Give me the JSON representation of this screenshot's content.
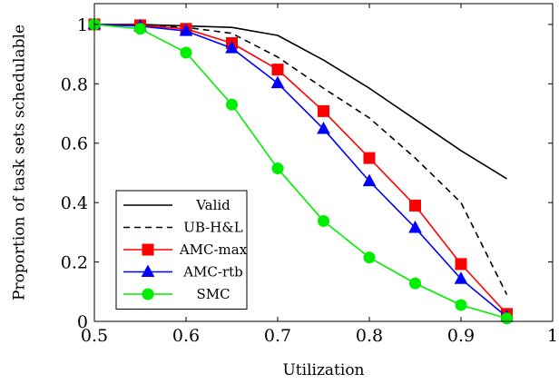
{
  "chart_data": {
    "type": "line",
    "title": "",
    "xlabel": "Utilization",
    "ylabel": "Proportion of task sets schedulable",
    "xlim": [
      0.5,
      1.0
    ],
    "ylim": [
      0,
      1.07
    ],
    "xticks": [
      0.5,
      0.6,
      0.7,
      0.8,
      0.9,
      1.0
    ],
    "xtick_labels": [
      "0.5",
      "0.6",
      "0.7",
      "0.8",
      "0.9",
      "1"
    ],
    "yticks": [
      0,
      0.2,
      0.4,
      0.6,
      0.8,
      1.0
    ],
    "ytick_labels": [
      "0",
      "0.2",
      "0.4",
      "0.6",
      "0.8",
      "1"
    ],
    "grid": false,
    "legend_position": "bottom-left",
    "x": [
      0.5,
      0.55,
      0.6,
      0.65,
      0.7,
      0.75,
      0.8,
      0.85,
      0.9,
      0.95
    ],
    "series": [
      {
        "name": "Valid",
        "color": "#000000",
        "style": "solid",
        "marker": "none",
        "values": [
          1.0,
          1.0,
          0.995,
          0.99,
          0.963,
          0.88,
          0.785,
          0.68,
          0.575,
          0.48
        ]
      },
      {
        "name": "UB-H&L",
        "color": "#000000",
        "style": "dashed",
        "marker": "none",
        "values": [
          1.0,
          0.998,
          0.99,
          0.97,
          0.89,
          0.785,
          0.685,
          0.55,
          0.4,
          0.09
        ]
      },
      {
        "name": "AMC-max",
        "color": "#ff0000",
        "style": "solid",
        "marker": "square",
        "values": [
          1.0,
          0.997,
          0.985,
          0.937,
          0.848,
          0.708,
          0.55,
          0.39,
          0.193,
          0.025
        ]
      },
      {
        "name": "AMC-rtb",
        "color": "#0000ff",
        "style": "solid",
        "marker": "triangle",
        "values": [
          1.0,
          0.994,
          0.978,
          0.92,
          0.802,
          0.648,
          0.472,
          0.315,
          0.143,
          0.015
        ]
      },
      {
        "name": "SMC",
        "color": "#00ee00",
        "style": "solid",
        "marker": "circle",
        "values": [
          1.0,
          0.985,
          0.905,
          0.73,
          0.515,
          0.338,
          0.215,
          0.128,
          0.055,
          0.01
        ]
      }
    ]
  }
}
